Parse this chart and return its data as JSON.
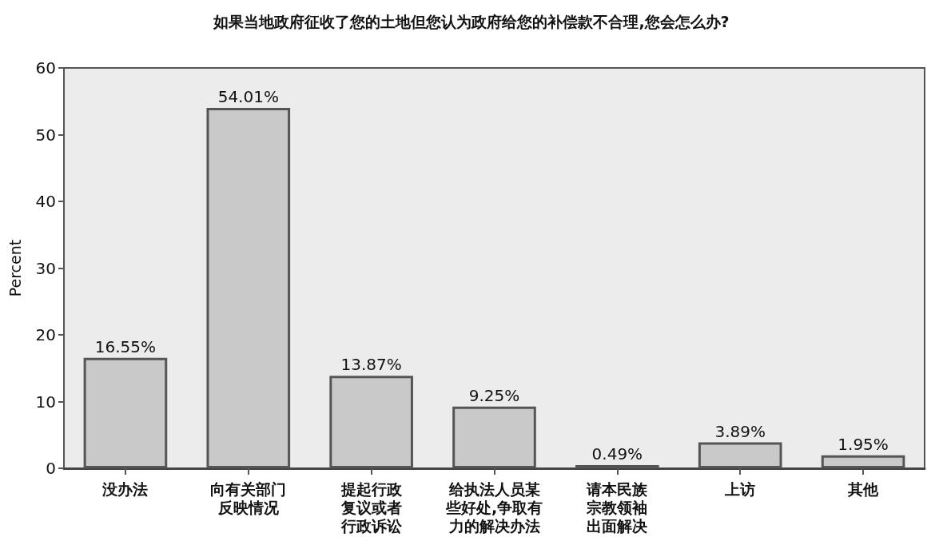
{
  "chart_data": {
    "type": "bar",
    "title": "如果当地政府征收了您的土地但您认为政府给您的补偿款不合理,您会怎么办?",
    "ylabel": "Percent",
    "categories": [
      "没办法",
      "向有关部门反映情况",
      "提起行政复议或者行政诉讼",
      "给执法人员某些好处,争取有力的解决办法",
      "请本民族宗教领袖出面解决",
      "上访",
      "其他"
    ],
    "values": [
      16.55,
      54.01,
      13.87,
      9.25,
      0.49,
      3.89,
      1.95
    ],
    "value_labels": [
      "16.55%",
      "54.01%",
      "13.87%",
      "9.25%",
      "0.49%",
      "3.89%",
      "1.95%"
    ],
    "color": "#c9c9c9",
    "ylim": [
      0,
      60
    ],
    "yticks": [
      0,
      10,
      20,
      30,
      40,
      50,
      60
    ]
  }
}
